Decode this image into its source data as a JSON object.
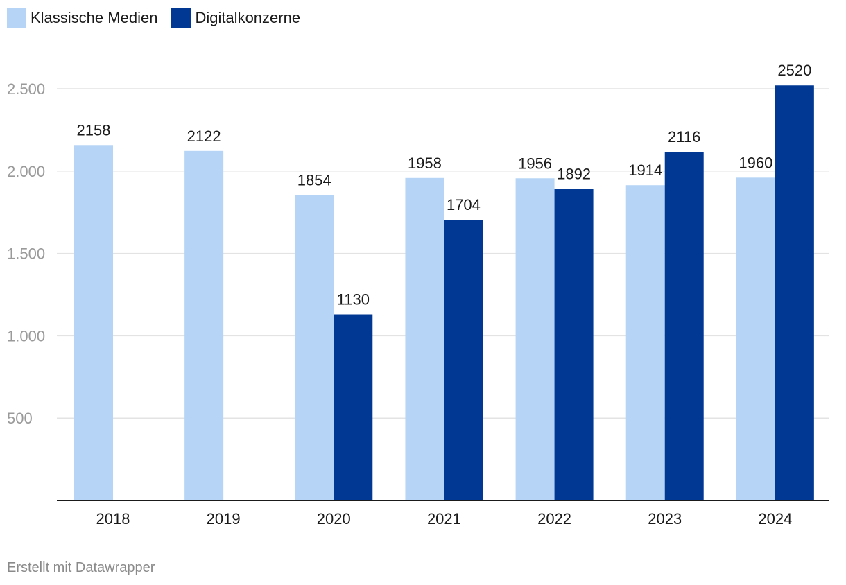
{
  "legend": {
    "items": [
      {
        "label": "Klassische Medien",
        "color": "#b6d5f6"
      },
      {
        "label": "Digitalkonzerne",
        "color": "#003893"
      }
    ]
  },
  "footer": {
    "credit": "Erstellt mit Datawrapper"
  },
  "chart_data": {
    "type": "bar",
    "categories": [
      "2018",
      "2019",
      "2020",
      "2021",
      "2022",
      "2023",
      "2024"
    ],
    "series": [
      {
        "name": "Klassische Medien",
        "color": "#b6d5f6",
        "values": [
          2158,
          2122,
          1854,
          1958,
          1956,
          1914,
          1960
        ]
      },
      {
        "name": "Digitalkonzerne",
        "color": "#003893",
        "values": [
          null,
          null,
          1130,
          1704,
          1892,
          2116,
          2520
        ]
      }
    ],
    "yticks": [
      500,
      1000,
      1500,
      2000,
      2500
    ],
    "ytick_labels": [
      "500",
      "1.000",
      "1.500",
      "2.000",
      "2.500"
    ],
    "ylim": [
      0,
      2500
    ],
    "grid": true,
    "legend_position": "top-left",
    "title": "",
    "xlabel": "",
    "ylabel": ""
  }
}
